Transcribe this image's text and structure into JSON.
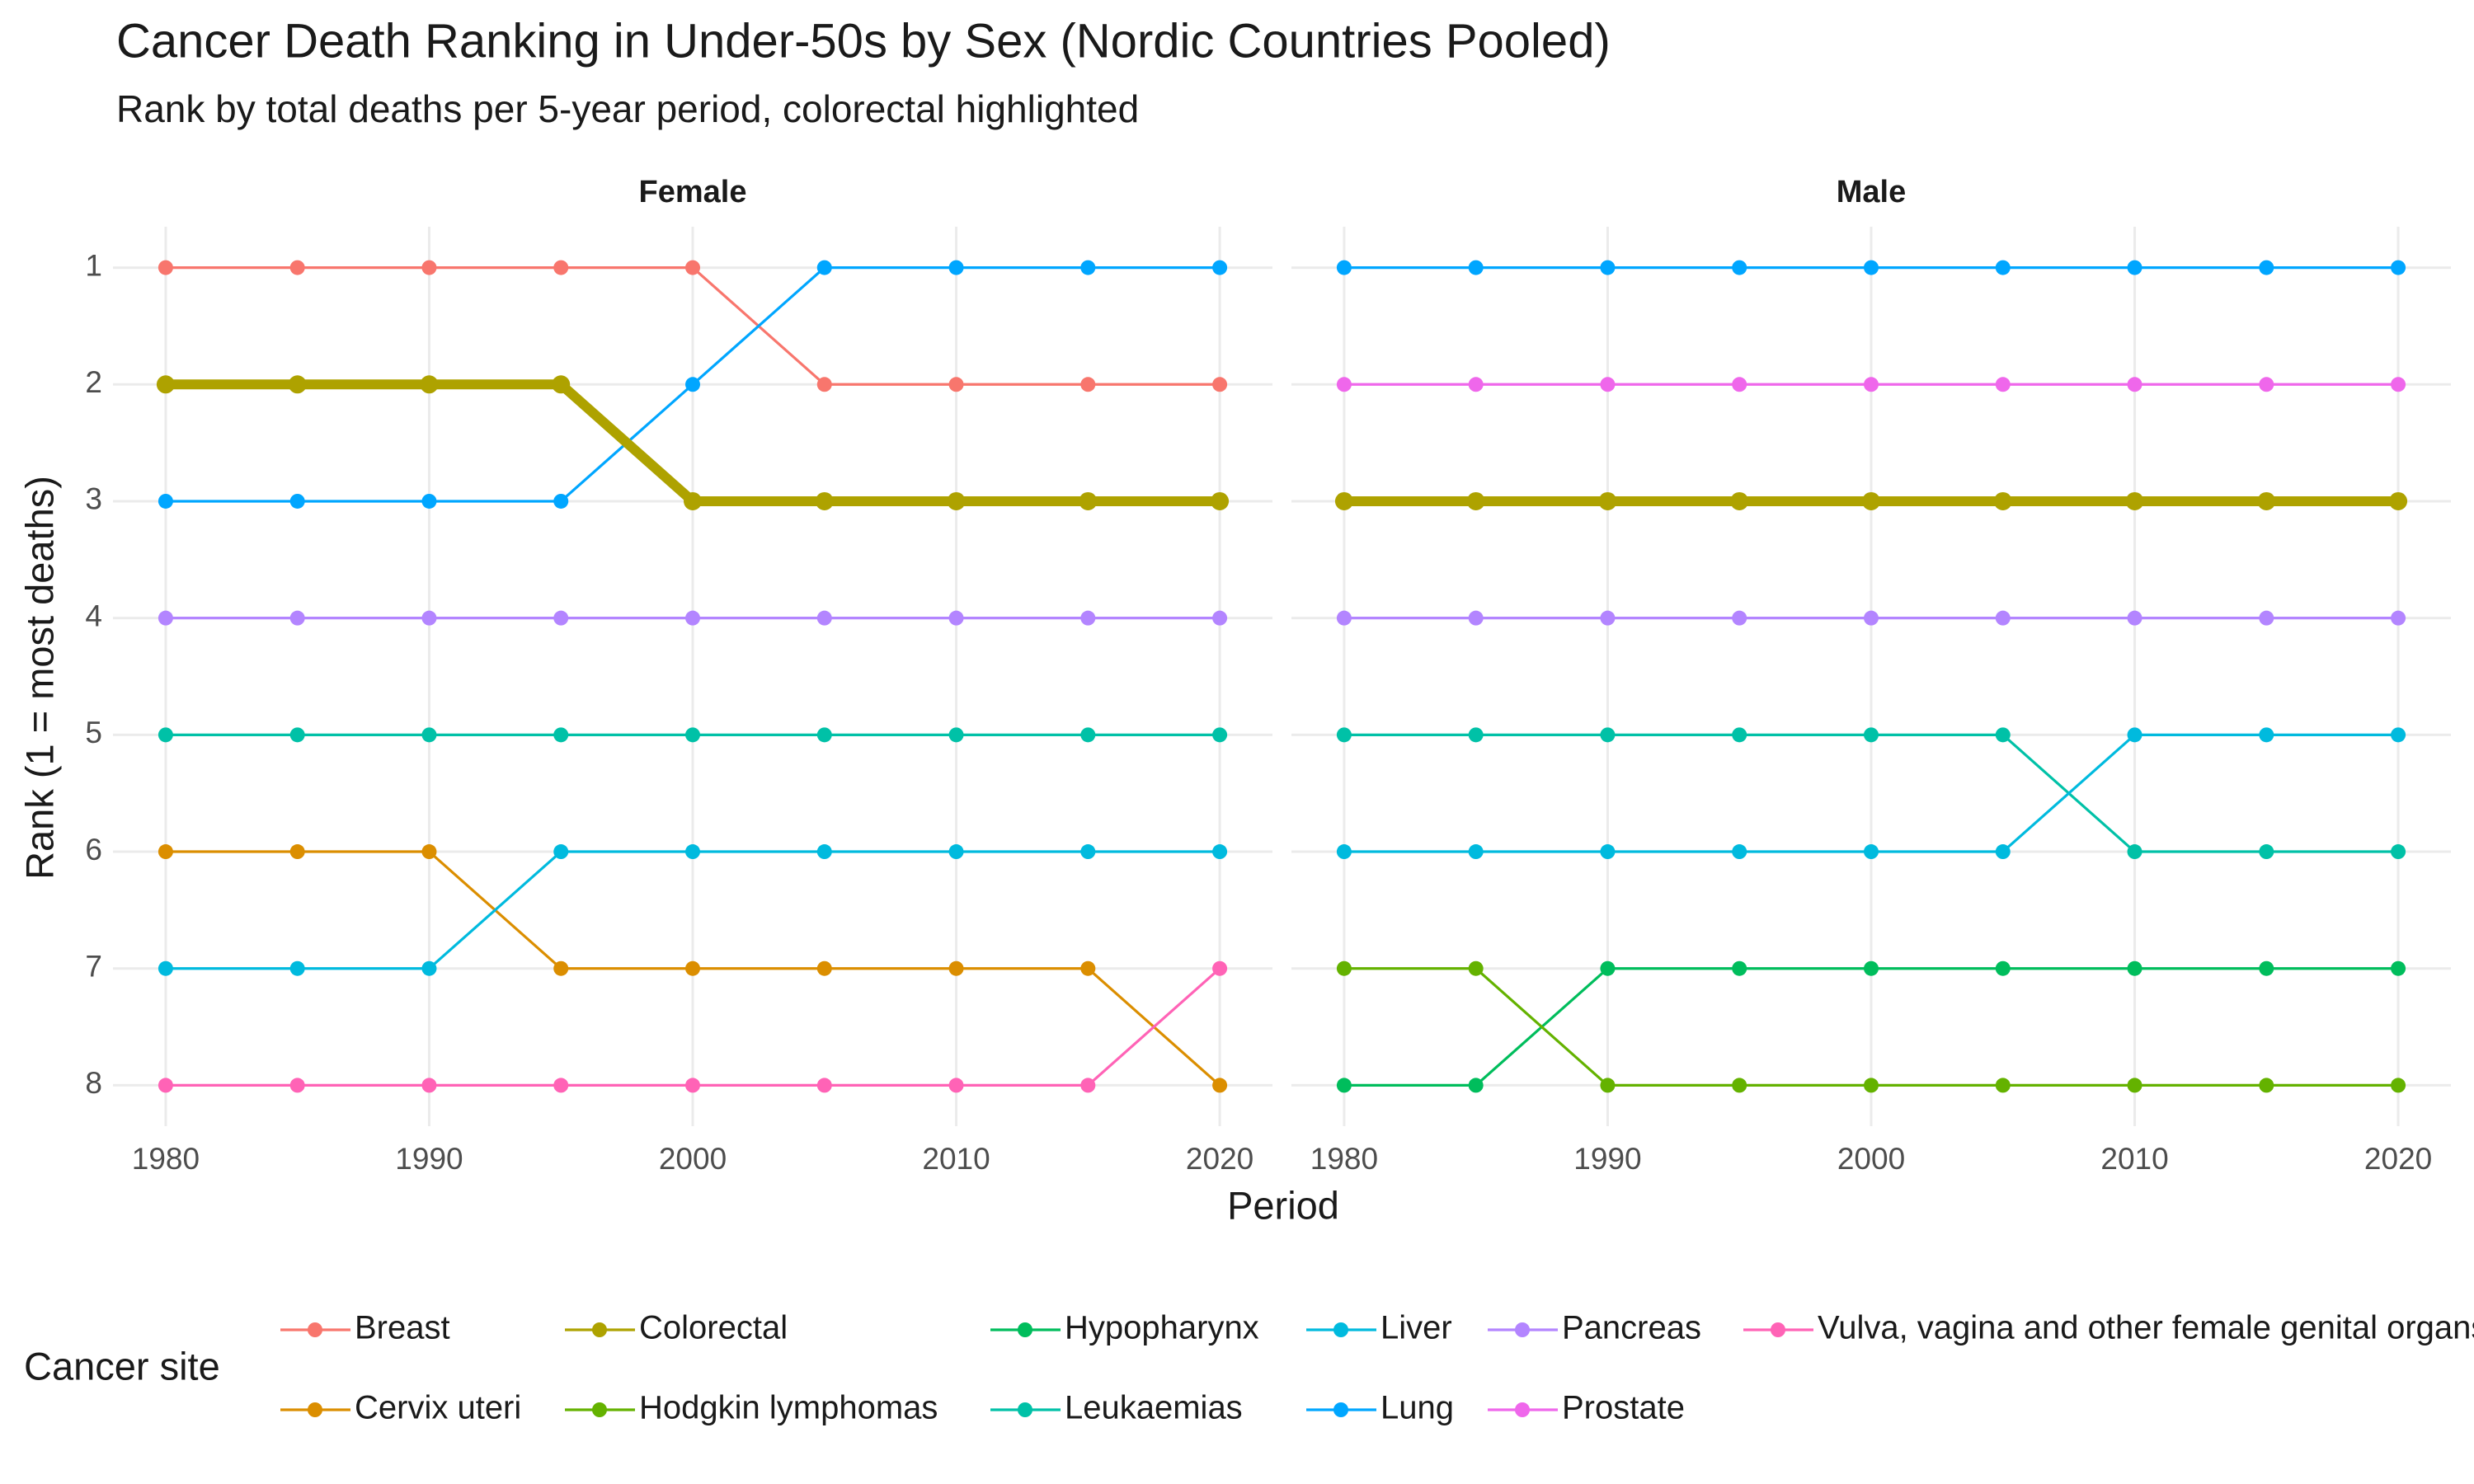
{
  "title": "Cancer Death Ranking in Under-50s by Sex (Nordic Countries Pooled)",
  "subtitle": "Rank by total deaths per 5-year period, colorectal highlighted",
  "x_label": "Period",
  "y_label": "Rank (1 = most deaths)",
  "legend": {
    "title": "Cancer site",
    "position": "bottom",
    "entries": [
      {
        "name": "Breast",
        "color": "#F8766D"
      },
      {
        "name": "Cervix uteri",
        "color": "#DB8E00"
      },
      {
        "name": "Colorectal",
        "color": "#AEA200"
      },
      {
        "name": "Hodgkin lymphomas",
        "color": "#64B200"
      },
      {
        "name": "Hypopharynx",
        "color": "#00BD5C"
      },
      {
        "name": "Leukaemias",
        "color": "#00C1A7"
      },
      {
        "name": "Liver",
        "color": "#00BADE"
      },
      {
        "name": "Lung",
        "color": "#00A6FF"
      },
      {
        "name": "Pancreas",
        "color": "#B385FF"
      },
      {
        "name": "Prostate",
        "color": "#EF67EB"
      },
      {
        "name": "Vulva, vagina and other female genital organs",
        "color": "#FF63B6"
      }
    ]
  },
  "chart_data": [
    {
      "type": "line",
      "title": "Female",
      "grid": true,
      "y_reversed": true,
      "x": [
        1980,
        1985,
        1990,
        1995,
        2000,
        2005,
        2010,
        2015,
        2020
      ],
      "xlim": [
        1978,
        2022
      ],
      "xticks": [
        1980,
        1990,
        2000,
        2010,
        2020
      ],
      "ylim": [
        0.65,
        8.35
      ],
      "yticks": [
        1,
        2,
        3,
        4,
        5,
        6,
        7,
        8
      ],
      "series": [
        {
          "name": "Breast",
          "color": "#F8766D",
          "values": [
            1,
            1,
            1,
            1,
            1,
            2,
            2,
            2,
            2
          ]
        },
        {
          "name": "Lung",
          "color": "#00A6FF",
          "values": [
            3,
            3,
            3,
            3,
            2,
            1,
            1,
            1,
            1
          ]
        },
        {
          "name": "Pancreas",
          "color": "#B385FF",
          "values": [
            4,
            4,
            4,
            4,
            4,
            4,
            4,
            4,
            4
          ]
        },
        {
          "name": "Leukaemias",
          "color": "#00C1A7",
          "values": [
            5,
            5,
            5,
            5,
            5,
            5,
            5,
            5,
            5
          ]
        },
        {
          "name": "Cervix uteri",
          "color": "#DB8E00",
          "values": [
            6,
            6,
            6,
            7,
            7,
            7,
            7,
            7,
            8
          ]
        },
        {
          "name": "Liver",
          "color": "#00BADE",
          "values": [
            7,
            7,
            7,
            6,
            6,
            6,
            6,
            6,
            6
          ]
        },
        {
          "name": "Vulva, vagina and other female genital organs",
          "color": "#FF63B6",
          "values": [
            8,
            8,
            8,
            8,
            8,
            8,
            8,
            8,
            7
          ]
        },
        {
          "name": "Colorectal",
          "color": "#AEA200",
          "highlight": true,
          "values": [
            2,
            2,
            2,
            2,
            3,
            3,
            3,
            3,
            3
          ]
        }
      ]
    },
    {
      "type": "line",
      "title": "Male",
      "grid": true,
      "y_reversed": true,
      "x": [
        1980,
        1985,
        1990,
        1995,
        2000,
        2005,
        2010,
        2015,
        2020
      ],
      "xlim": [
        1978,
        2022
      ],
      "xticks": [
        1980,
        1990,
        2000,
        2010,
        2020
      ],
      "ylim": [
        0.65,
        8.35
      ],
      "yticks": [
        1,
        2,
        3,
        4,
        5,
        6,
        7,
        8
      ],
      "series": [
        {
          "name": "Lung",
          "color": "#00A6FF",
          "values": [
            1,
            1,
            1,
            1,
            1,
            1,
            1,
            1,
            1
          ]
        },
        {
          "name": "Prostate",
          "color": "#EF67EB",
          "values": [
            2,
            2,
            2,
            2,
            2,
            2,
            2,
            2,
            2
          ]
        },
        {
          "name": "Pancreas",
          "color": "#B385FF",
          "values": [
            4,
            4,
            4,
            4,
            4,
            4,
            4,
            4,
            4
          ]
        },
        {
          "name": "Leukaemias",
          "color": "#00C1A7",
          "values": [
            5,
            5,
            5,
            5,
            5,
            5,
            6,
            6,
            6
          ]
        },
        {
          "name": "Liver",
          "color": "#00BADE",
          "values": [
            6,
            6,
            6,
            6,
            6,
            6,
            5,
            5,
            5
          ]
        },
        {
          "name": "Hypopharynx",
          "color": "#00BD5C",
          "values": [
            8,
            8,
            7,
            7,
            7,
            7,
            7,
            7,
            7
          ]
        },
        {
          "name": "Hodgkin lymphomas",
          "color": "#64B200",
          "values": [
            7,
            7,
            8,
            8,
            8,
            8,
            8,
            8,
            8
          ]
        },
        {
          "name": "Colorectal",
          "color": "#AEA200",
          "highlight": true,
          "values": [
            3,
            3,
            3,
            3,
            3,
            3,
            3,
            3,
            3
          ]
        }
      ]
    }
  ]
}
